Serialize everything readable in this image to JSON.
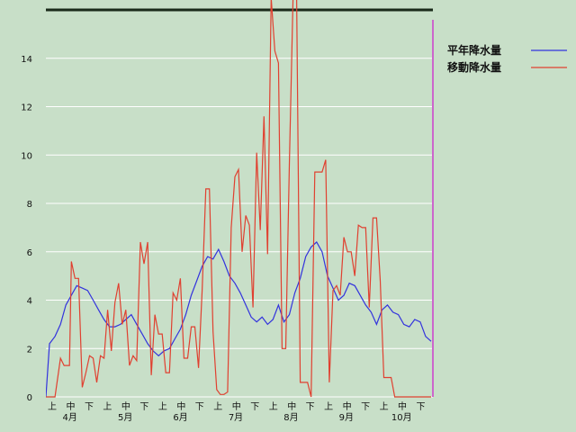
{
  "chart_data": {
    "type": "line",
    "ylim": [
      0,
      16
    ],
    "y_ticks": [
      0,
      2,
      4,
      6,
      8,
      10,
      12,
      14
    ],
    "grid": "horizontal",
    "legend_placement": "right",
    "x_subticks": [
      "上",
      "中",
      "下"
    ],
    "months": [
      "4月",
      "5月",
      "6月",
      "7月",
      "8月",
      "9月",
      "10月"
    ],
    "series": [
      {
        "name": "平年降水量",
        "color": "#3333dd",
        "x": [
          0,
          2,
          5,
          8,
          11,
          14,
          17,
          20,
          23,
          26,
          29,
          32,
          35,
          38,
          41,
          44,
          47,
          50,
          53,
          56,
          59,
          62,
          65,
          68,
          71,
          74,
          77,
          80,
          83,
          86,
          89,
          92,
          95,
          98,
          101,
          104,
          107,
          110,
          113,
          116,
          119,
          122,
          125,
          128,
          131,
          134,
          137,
          140,
          143,
          146,
          149,
          152,
          155,
          158,
          161,
          164,
          167,
          170,
          173,
          176,
          179,
          182,
          185,
          188,
          191,
          194,
          197,
          200,
          203,
          206,
          209,
          212
        ],
        "values": [
          0,
          2.2,
          2.5,
          3.0,
          3.8,
          4.2,
          4.6,
          4.5,
          4.4,
          4.0,
          3.6,
          3.2,
          2.9,
          2.9,
          3.0,
          3.2,
          3.4,
          3.0,
          2.6,
          2.2,
          1.9,
          1.7,
          1.9,
          2.0,
          2.4,
          2.8,
          3.4,
          4.2,
          4.8,
          5.4,
          5.8,
          5.7,
          6.1,
          5.6,
          5.0,
          4.7,
          4.3,
          3.8,
          3.3,
          3.1,
          3.3,
          3.0,
          3.2,
          3.8,
          3.1,
          3.4,
          4.3,
          4.9,
          5.8,
          6.2,
          6.4,
          6.0,
          5.0,
          4.5,
          4.0,
          4.2,
          4.7,
          4.6,
          4.2,
          3.8,
          3.5,
          3.0,
          3.6,
          3.8,
          3.5,
          3.4,
          3.0,
          2.9,
          3.2,
          3.1,
          2.5,
          2.3
        ]
      },
      {
        "name": "移動降水量",
        "color": "#e04030",
        "x": [
          0,
          5,
          8,
          10,
          13,
          14,
          16,
          18,
          20,
          22,
          24,
          26,
          28,
          30,
          32,
          34,
          36,
          38,
          40,
          42,
          44,
          46,
          48,
          50,
          52,
          54,
          56,
          58,
          60,
          62,
          64,
          66,
          68,
          70,
          72,
          74,
          76,
          78,
          80,
          82,
          84,
          86,
          88,
          90,
          92,
          94,
          96,
          98,
          100,
          102,
          104,
          106,
          108,
          110,
          112,
          114,
          116,
          118,
          120,
          122,
          124,
          126,
          128,
          130,
          132,
          134,
          136,
          138,
          140,
          142,
          144,
          146,
          148,
          150,
          152,
          154,
          156,
          158,
          160,
          162,
          164,
          166,
          168,
          170,
          172,
          174,
          176,
          178,
          180,
          182,
          184,
          186,
          188,
          190,
          192,
          194,
          196,
          198,
          200,
          202,
          204,
          206,
          208,
          210,
          212
        ],
        "values": [
          0,
          0,
          1.6,
          1.3,
          1.3,
          5.6,
          4.9,
          4.9,
          0.4,
          1.0,
          1.7,
          1.6,
          0.6,
          1.7,
          1.6,
          3.6,
          1.9,
          3.9,
          4.7,
          3.0,
          3.6,
          1.3,
          1.7,
          1.5,
          6.4,
          5.5,
          6.4,
          0.9,
          3.4,
          2.6,
          2.6,
          1.0,
          1.0,
          4.3,
          4.0,
          4.9,
          1.6,
          1.6,
          2.9,
          2.9,
          1.2,
          4.4,
          8.6,
          8.6,
          2.7,
          0.3,
          0.1,
          0.1,
          0.2,
          7.0,
          9.1,
          9.4,
          6.0,
          7.5,
          7.1,
          3.7,
          10.1,
          6.9,
          11.6,
          5.9,
          16.5,
          14.3,
          13.8,
          2.0,
          2.0,
          9.6,
          16.5,
          16.5,
          0.6,
          0.6,
          0.6,
          0.0,
          9.3,
          9.3,
          9.3,
          9.8,
          0.6,
          4.4,
          4.6,
          4.2,
          6.6,
          6.0,
          6.0,
          5.0,
          7.1,
          7.0,
          7.0,
          3.7,
          7.4,
          7.4,
          4.8,
          0.8,
          0.8,
          0.8,
          0.0,
          0.0,
          0.0,
          0.0,
          0.0,
          0.0,
          0.0,
          0.0,
          0.0,
          0.0,
          0.0
        ]
      }
    ],
    "x_max": 213
  }
}
